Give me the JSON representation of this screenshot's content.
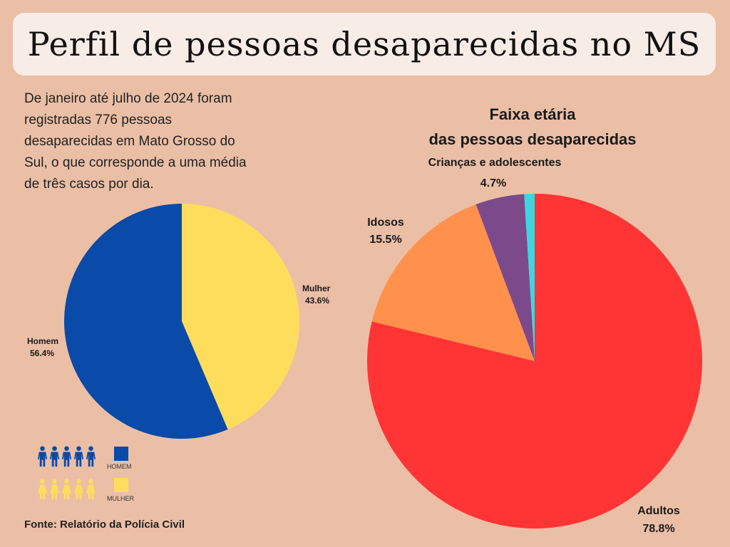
{
  "title": "Perfil de pessoas desaparecidas no MS",
  "intro": "De janeiro até julho de 2024 foram registradas 776 pessoas desaparecidas em Mato Grosso do Sul, o que corresponde a uma média de três casos por dia.",
  "source": "Fonte: Relatório da Polícia Civil",
  "legend": {
    "homem": "HOMEM",
    "mulher": "MULHER",
    "homem_icon": "male-person-icon",
    "mulher_icon": "female-person-icon"
  },
  "chart_data": [
    {
      "type": "pie",
      "title": "",
      "categories": [
        "Homem",
        "Mulher"
      ],
      "values": [
        56.4,
        43.6
      ],
      "value_labels": [
        "56.4%",
        "43.6%"
      ],
      "colors": [
        "#0a4aa8",
        "#ffdd5c"
      ]
    },
    {
      "type": "pie",
      "title": "Faixa etária das pessoas desaparecidas",
      "title_lines": [
        "Faixa etária",
        "das pessoas desaparecidas"
      ],
      "categories": [
        "Adultos",
        "Idosos",
        "Crianças e adolescentes",
        ""
      ],
      "values": [
        78.8,
        15.5,
        4.7,
        1.0
      ],
      "value_labels": [
        "78.8%",
        "15.5%",
        "4.7%",
        ""
      ],
      "colors": [
        "#ff3434",
        "#ff914d",
        "#7c4a8a",
        "#3ed6e0"
      ]
    }
  ]
}
